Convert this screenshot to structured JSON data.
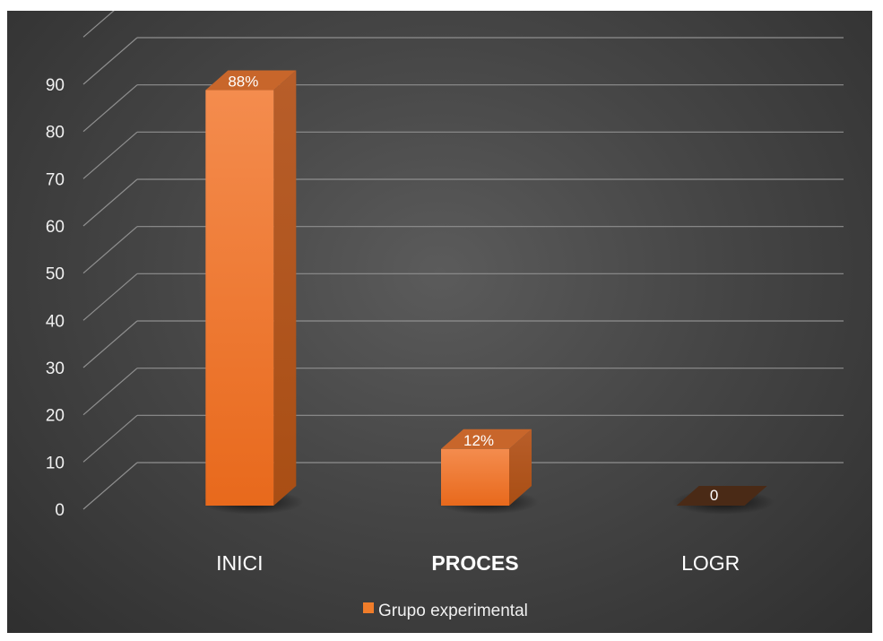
{
  "chart_data": {
    "type": "bar",
    "style": "3d-column",
    "categories": [
      "INICI",
      "PROCES",
      "LOGR"
    ],
    "bold_categories": [
      "PROCES"
    ],
    "series": [
      {
        "name": "Grupo experimental",
        "values": [
          88,
          12,
          0
        ],
        "data_labels": [
          "88%",
          "12%",
          "0"
        ],
        "color": "#f07d2a"
      }
    ],
    "ylim": [
      0,
      90
    ],
    "yticks": [
      0,
      10,
      20,
      30,
      40,
      50,
      60,
      70,
      80,
      90
    ],
    "grid": true,
    "legend_position": "bottom",
    "background": "#474747"
  }
}
